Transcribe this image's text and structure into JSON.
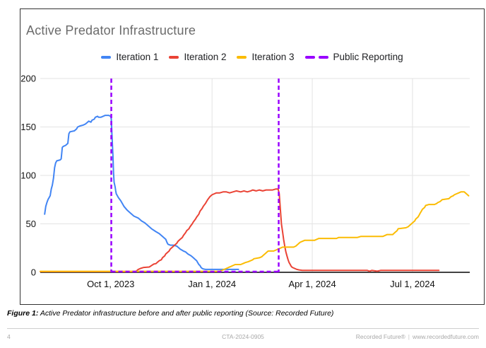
{
  "chart_data": {
    "type": "line",
    "title": "Active Predator Infrastructure",
    "grid": true,
    "legend_position": "top",
    "x_axis": {
      "unit": "days since 2023-08-01",
      "domain": [
        -3,
        387
      ],
      "ticks": [
        {
          "day": 61,
          "label": "Oct 1, 2023"
        },
        {
          "day": 153,
          "label": "Jan 1, 2024"
        },
        {
          "day": 244,
          "label": "Apr 1, 2024"
        },
        {
          "day": 335,
          "label": "Jul 1, 2024"
        }
      ]
    },
    "y_axis": {
      "domain": [
        0,
        200
      ],
      "ticks": [
        0,
        50,
        100,
        150,
        200
      ]
    },
    "series": [
      {
        "name": "Iteration 1",
        "color": "#4285F4",
        "points": [
          [
            1,
            60
          ],
          [
            2,
            68
          ],
          [
            3,
            72
          ],
          [
            4,
            75
          ],
          [
            6,
            79
          ],
          [
            7,
            86
          ],
          [
            8,
            90
          ],
          [
            9,
            97
          ],
          [
            10,
            108
          ],
          [
            11,
            113
          ],
          [
            12,
            115
          ],
          [
            15,
            116
          ],
          [
            16,
            117
          ],
          [
            17,
            129
          ],
          [
            18,
            130
          ],
          [
            20,
            131
          ],
          [
            22,
            133
          ],
          [
            23,
            143
          ],
          [
            24,
            145
          ],
          [
            28,
            146
          ],
          [
            30,
            148
          ],
          [
            31,
            150
          ],
          [
            33,
            151
          ],
          [
            36,
            152
          ],
          [
            38,
            153
          ],
          [
            40,
            155
          ],
          [
            41,
            156
          ],
          [
            43,
            155
          ],
          [
            44,
            157
          ],
          [
            46,
            158
          ],
          [
            47,
            160
          ],
          [
            49,
            161
          ],
          [
            50,
            160
          ],
          [
            52,
            160
          ],
          [
            54,
            161
          ],
          [
            56,
            162
          ],
          [
            59,
            162
          ],
          [
            61,
            161
          ],
          [
            61.5,
            158
          ],
          [
            62,
            145
          ],
          [
            63,
            120
          ],
          [
            63.5,
            103
          ],
          [
            64,
            93
          ],
          [
            65,
            88
          ],
          [
            65.5,
            84
          ],
          [
            66,
            81
          ],
          [
            68,
            77
          ],
          [
            70,
            74
          ],
          [
            71,
            72
          ],
          [
            73,
            68
          ],
          [
            76,
            64
          ],
          [
            79,
            61
          ],
          [
            82,
            58
          ],
          [
            86,
            56
          ],
          [
            89,
            53
          ],
          [
            92,
            51
          ],
          [
            95,
            48
          ],
          [
            98,
            45
          ],
          [
            102,
            42
          ],
          [
            105,
            40
          ],
          [
            108,
            37
          ],
          [
            111,
            34
          ],
          [
            112,
            31
          ],
          [
            113,
            29
          ],
          [
            115,
            28
          ],
          [
            118,
            28
          ],
          [
            121,
            27
          ],
          [
            124,
            24
          ],
          [
            127,
            22
          ],
          [
            129,
            21
          ],
          [
            131,
            19
          ],
          [
            134,
            17
          ],
          [
            136,
            15
          ],
          [
            138,
            13
          ],
          [
            139,
            12
          ],
          [
            140,
            10
          ],
          [
            141,
            8
          ],
          [
            142,
            7
          ],
          [
            143,
            5
          ],
          [
            144,
            4
          ],
          [
            145,
            3.5
          ],
          [
            147,
            3
          ],
          [
            152,
            3
          ],
          [
            158,
            3
          ],
          [
            163,
            3
          ],
          [
            168,
            3
          ],
          [
            172,
            3
          ],
          [
            177,
            3
          ]
        ]
      },
      {
        "name": "Iteration 2",
        "color": "#EA4335",
        "points": [
          [
            -3,
            0.7
          ],
          [
            30,
            0.7
          ],
          [
            61,
            0.7
          ],
          [
            80,
            0.7
          ],
          [
            84,
            1
          ],
          [
            86,
            3
          ],
          [
            88,
            4
          ],
          [
            91,
            5
          ],
          [
            96,
            5.5
          ],
          [
            98,
            7
          ],
          [
            100,
            8.5
          ],
          [
            102,
            9
          ],
          [
            103,
            10
          ],
          [
            105,
            12
          ],
          [
            107,
            13
          ],
          [
            108,
            15
          ],
          [
            110,
            17
          ],
          [
            111,
            19
          ],
          [
            112,
            20
          ],
          [
            114,
            22
          ],
          [
            115,
            24
          ],
          [
            117,
            26
          ],
          [
            119,
            28
          ],
          [
            121,
            30
          ],
          [
            122,
            32
          ],
          [
            124,
            34
          ],
          [
            126,
            36
          ],
          [
            127,
            38
          ],
          [
            129,
            41
          ],
          [
            130,
            43
          ],
          [
            132,
            45
          ],
          [
            133,
            47
          ],
          [
            135,
            50
          ],
          [
            136,
            52
          ],
          [
            138,
            55
          ],
          [
            139,
            57
          ],
          [
            141,
            60
          ],
          [
            142,
            63
          ],
          [
            144,
            66
          ],
          [
            145,
            68
          ],
          [
            147,
            71
          ],
          [
            148,
            73
          ],
          [
            149,
            75
          ],
          [
            151,
            78
          ],
          [
            152,
            79
          ],
          [
            153,
            80
          ],
          [
            155,
            81
          ],
          [
            157,
            82
          ],
          [
            160,
            82
          ],
          [
            163,
            83
          ],
          [
            166,
            83
          ],
          [
            169,
            82
          ],
          [
            172,
            83
          ],
          [
            175,
            84
          ],
          [
            179,
            83
          ],
          [
            182,
            84
          ],
          [
            185,
            83
          ],
          [
            188,
            84
          ],
          [
            190,
            85
          ],
          [
            193,
            84
          ],
          [
            196,
            85
          ],
          [
            199,
            84
          ],
          [
            202,
            85
          ],
          [
            205,
            85
          ],
          [
            208,
            85
          ],
          [
            211,
            86
          ],
          [
            213,
            86
          ],
          [
            214,
            81
          ],
          [
            215,
            65
          ],
          [
            216,
            50
          ],
          [
            217,
            42
          ],
          [
            218,
            34
          ],
          [
            219,
            27
          ],
          [
            220,
            21
          ],
          [
            221,
            17
          ],
          [
            222,
            13
          ],
          [
            223,
            10
          ],
          [
            224,
            8
          ],
          [
            225,
            6
          ],
          [
            226,
            5
          ],
          [
            228,
            4
          ],
          [
            230,
            3
          ],
          [
            232,
            2.5
          ],
          [
            235,
            2
          ],
          [
            245,
            2
          ],
          [
            258,
            2
          ],
          [
            270,
            2
          ],
          [
            283,
            2
          ],
          [
            294,
            2
          ],
          [
            296,
            1.2
          ],
          [
            298,
            2
          ],
          [
            303,
            1.2
          ],
          [
            306,
            2
          ],
          [
            318,
            2
          ],
          [
            330,
            2
          ],
          [
            342,
            2
          ],
          [
            352,
            2
          ],
          [
            359,
            2
          ]
        ]
      },
      {
        "name": "Iteration 3",
        "color": "#FBBC04",
        "points": [
          [
            -3,
            1
          ],
          [
            30,
            1
          ],
          [
            61,
            1
          ],
          [
            100,
            1
          ],
          [
            130,
            1
          ],
          [
            155,
            1
          ],
          [
            160,
            1
          ],
          [
            162,
            2
          ],
          [
            164,
            3
          ],
          [
            166,
            4
          ],
          [
            168,
            5
          ],
          [
            170,
            6
          ],
          [
            172,
            7
          ],
          [
            174,
            8
          ],
          [
            179,
            8
          ],
          [
            181,
            9
          ],
          [
            183,
            10
          ],
          [
            186,
            11
          ],
          [
            188,
            12
          ],
          [
            190,
            13
          ],
          [
            191,
            14
          ],
          [
            196,
            15
          ],
          [
            198,
            16
          ],
          [
            199,
            17
          ],
          [
            200,
            18
          ],
          [
            201,
            19
          ],
          [
            203,
            21
          ],
          [
            204,
            22
          ],
          [
            209,
            22
          ],
          [
            211,
            23
          ],
          [
            213,
            24
          ],
          [
            215,
            25
          ],
          [
            217,
            26
          ],
          [
            227,
            26
          ],
          [
            229,
            27
          ],
          [
            231,
            29
          ],
          [
            233,
            31
          ],
          [
            235,
            32
          ],
          [
            237,
            33
          ],
          [
            246,
            33
          ],
          [
            248,
            34
          ],
          [
            250,
            35
          ],
          [
            266,
            35
          ],
          [
            268,
            36
          ],
          [
            285,
            36
          ],
          [
            288,
            37
          ],
          [
            308,
            37
          ],
          [
            310,
            38
          ],
          [
            312,
            39
          ],
          [
            317,
            39
          ],
          [
            319,
            41
          ],
          [
            321,
            43
          ],
          [
            322,
            45
          ],
          [
            329,
            46
          ],
          [
            331,
            47
          ],
          [
            333,
            49
          ],
          [
            335,
            51
          ],
          [
            337,
            53
          ],
          [
            338,
            55
          ],
          [
            340,
            57
          ],
          [
            341,
            59
          ],
          [
            342,
            61
          ],
          [
            343,
            63
          ],
          [
            344,
            65
          ],
          [
            346,
            67
          ],
          [
            347,
            69
          ],
          [
            350,
            70
          ],
          [
            355,
            70
          ],
          [
            357,
            71
          ],
          [
            358,
            72
          ],
          [
            360,
            73
          ],
          [
            361,
            74
          ],
          [
            362,
            75
          ],
          [
            368,
            76
          ],
          [
            370,
            78
          ],
          [
            372,
            79
          ],
          [
            373,
            80
          ],
          [
            375,
            81
          ],
          [
            377,
            82
          ],
          [
            379,
            83
          ],
          [
            382,
            83
          ],
          [
            384,
            81
          ],
          [
            386,
            79
          ]
        ]
      }
    ],
    "events": [
      {
        "name": "Public Reporting",
        "day": 61.5,
        "color": "#9900FF",
        "style": "dashed"
      },
      {
        "name": "Public Reporting",
        "day": 213.5,
        "color": "#9900FF",
        "style": "dashed"
      }
    ],
    "event_baseline": {
      "from_day": 61.5,
      "to_day": 213.5,
      "value": 0,
      "color": "#9900FF",
      "style": "dashed"
    }
  },
  "legend": {
    "items": [
      {
        "label": "Iteration 1",
        "color": "#4285F4",
        "dashed": false
      },
      {
        "label": "Iteration 2",
        "color": "#EA4335",
        "dashed": false
      },
      {
        "label": "Iteration 3",
        "color": "#FBBC04",
        "dashed": false
      },
      {
        "label": "Public Reporting",
        "color": "#9900FF",
        "dashed": true
      }
    ]
  },
  "caption": {
    "prefix": "Figure 1:",
    "text": " Active Predator infrastructure before and after public reporting (Source: Recorded Future)"
  },
  "footer": {
    "page_number": "4",
    "document_id": "CTA-2024-0905",
    "brand": "Recorded Future®",
    "divider": "|",
    "url": "www.recordedfuture.com"
  },
  "colors": {
    "title": "#6b6b6b",
    "gridline": "#e3e3e3",
    "axis_line": "#424242",
    "tick_label": "#111111",
    "card_border": "#333333",
    "footer_text": "#a8a8a8"
  }
}
